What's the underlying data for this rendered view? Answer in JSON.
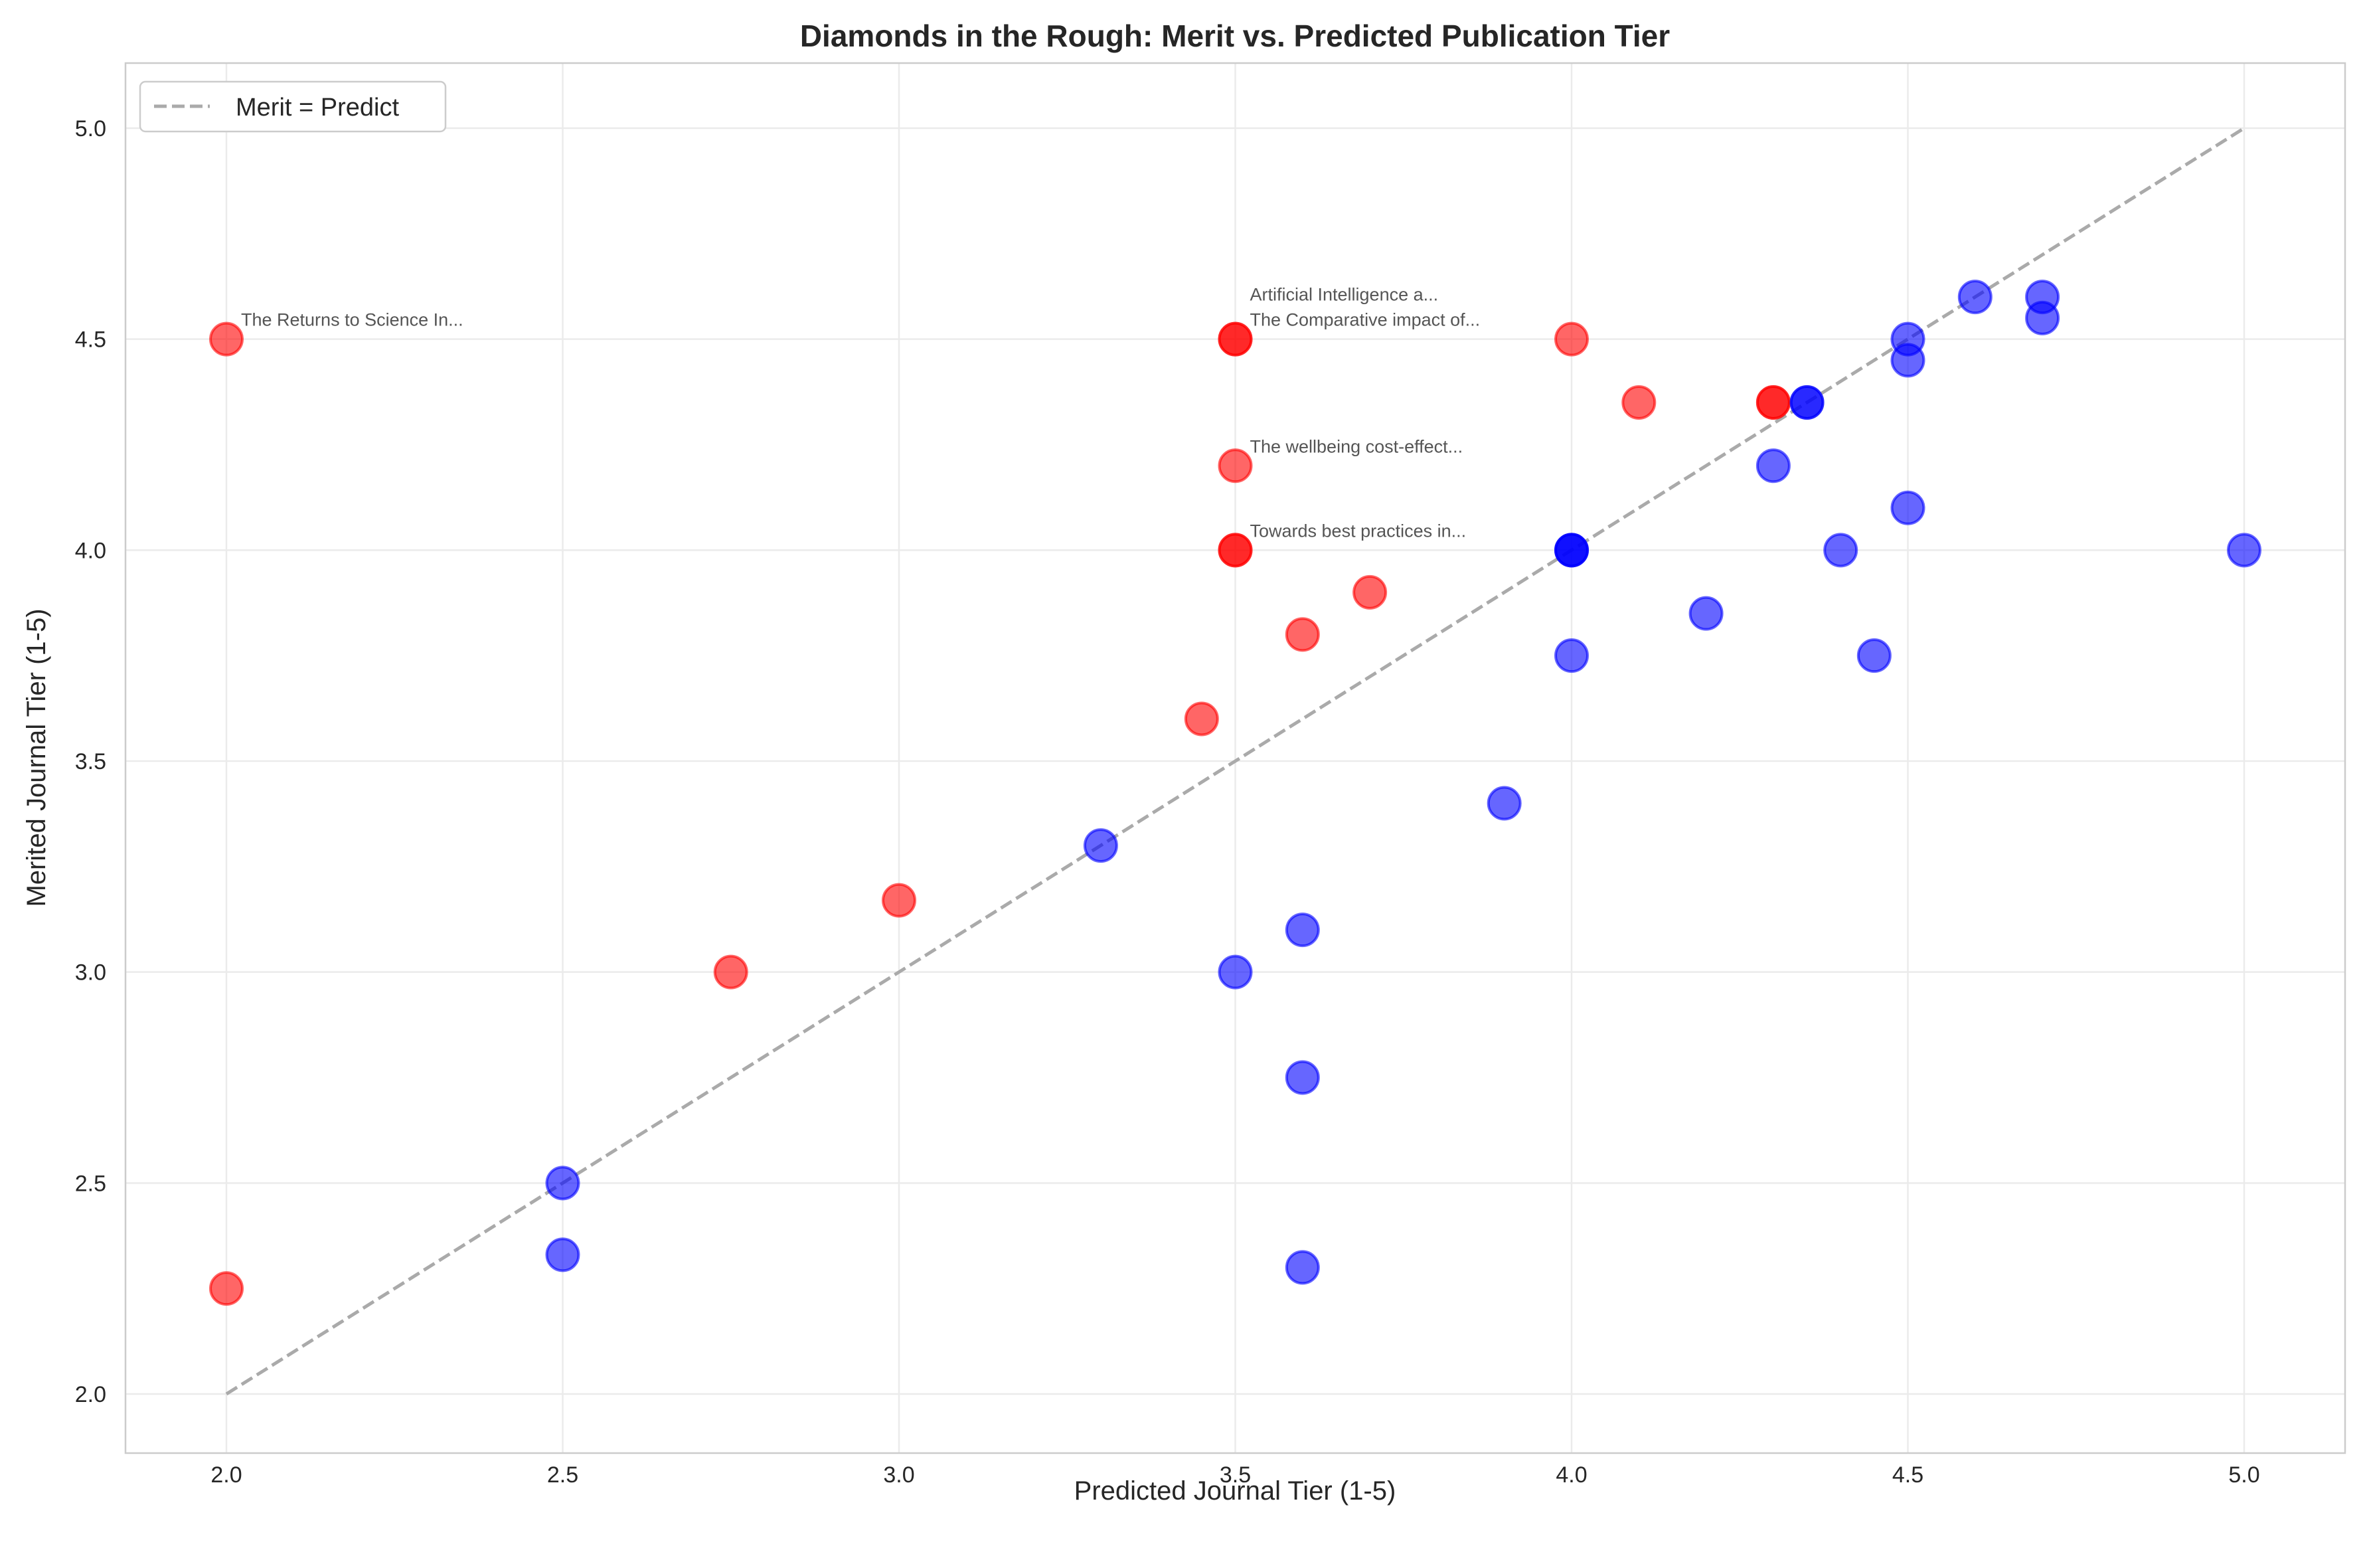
{
  "chart_data": {
    "type": "scatter",
    "title": "Diamonds in the Rough: Merit vs. Predicted Publication Tier",
    "xlabel": "Predicted Journal Tier (1-5)",
    "ylabel": "Merited Journal Tier (1-5)",
    "xlim": [
      1.85,
      5.15
    ],
    "ylim": [
      1.85,
      5.15
    ],
    "xticks": [
      "2.0",
      "2.5",
      "3.0",
      "3.5",
      "4.0",
      "4.5",
      "5.0"
    ],
    "yticks": [
      "2.0",
      "2.5",
      "3.0",
      "3.5",
      "4.0",
      "4.5",
      "5.0"
    ],
    "grid": true,
    "legend": {
      "position": "top-left",
      "entries": [
        "Merit = Predict"
      ]
    },
    "reference_line": {
      "name": "Merit = Predict",
      "x": [
        2.0,
        5.0
      ],
      "y": [
        2.0,
        5.0
      ],
      "color": "#aaaaaa",
      "style": "dashed"
    },
    "colors": {
      "above": "#ff0000",
      "below": "#0000ff"
    },
    "series": [
      {
        "group": "above",
        "points": [
          [
            2.0,
            4.5
          ],
          [
            2.0,
            2.25
          ],
          [
            2.75,
            3.0
          ],
          [
            3.0,
            3.17
          ],
          [
            3.45,
            3.6
          ],
          [
            3.5,
            4.5
          ],
          [
            3.5,
            4.5
          ],
          [
            3.5,
            4.2
          ],
          [
            3.5,
            4.0
          ],
          [
            3.5,
            4.0
          ],
          [
            3.6,
            3.8
          ],
          [
            3.7,
            3.9
          ],
          [
            4.0,
            4.5
          ],
          [
            4.1,
            4.35
          ],
          [
            4.3,
            4.35
          ],
          [
            4.3,
            4.35
          ]
        ]
      },
      {
        "group": "below",
        "points": [
          [
            2.5,
            2.5
          ],
          [
            2.5,
            2.33
          ],
          [
            3.3,
            3.3
          ],
          [
            3.5,
            3.0
          ],
          [
            3.6,
            3.1
          ],
          [
            3.6,
            2.75
          ],
          [
            3.6,
            2.3
          ],
          [
            3.9,
            3.4
          ],
          [
            4.0,
            3.75
          ],
          [
            4.0,
            4.0
          ],
          [
            4.0,
            4.0
          ],
          [
            4.0,
            4.0
          ],
          [
            4.2,
            3.85
          ],
          [
            4.3,
            4.2
          ],
          [
            4.35,
            4.35
          ],
          [
            4.35,
            4.35
          ],
          [
            4.4,
            4.0
          ],
          [
            4.45,
            3.75
          ],
          [
            4.5,
            4.5
          ],
          [
            4.5,
            4.45
          ],
          [
            4.5,
            4.1
          ],
          [
            4.6,
            4.6
          ],
          [
            4.7,
            4.6
          ],
          [
            4.7,
            4.55
          ],
          [
            5.0,
            4.0
          ]
        ]
      }
    ],
    "annotations": [
      {
        "text": "The Returns to Science In...",
        "x": 2.0,
        "y": 4.5
      },
      {
        "text": "The Comparative impact of...",
        "x": 3.5,
        "y": 4.5
      },
      {
        "text": "Artificial Intelligence a...",
        "x": 3.5,
        "y": 4.5
      },
      {
        "text": "The wellbeing cost-effect...",
        "x": 3.5,
        "y": 4.2
      },
      {
        "text": "Towards best practices in...",
        "x": 3.5,
        "y": 4.0
      }
    ]
  }
}
